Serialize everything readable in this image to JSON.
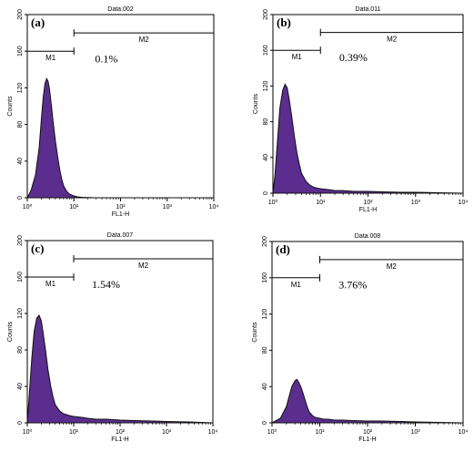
{
  "chart_data": [
    {
      "type": "area",
      "panel_label": "(a)",
      "title": "Data.002",
      "xlabel": "FL1-H",
      "ylabel": "Counts",
      "x_scale": "log",
      "xlim": [
        1,
        10000
      ],
      "ylim": [
        0,
        200
      ],
      "x_ticks": [
        "10⁰",
        "10¹",
        "10²",
        "10³",
        "10⁴"
      ],
      "y_ticks": [
        "0",
        "40",
        "80",
        "120",
        "160",
        "200"
      ],
      "markers": [
        {
          "label": "M1",
          "range": [
            1,
            10
          ],
          "level": 160
        },
        {
          "label": "M2",
          "range": [
            10,
            10000
          ],
          "level": 180
        }
      ],
      "annotation": "0.1%",
      "fill_color": "#5b2d8e",
      "series": [
        {
          "x": [
            1.0,
            1.2,
            1.5,
            1.8,
            2.0,
            2.2,
            2.4,
            2.6,
            2.8,
            3.0,
            3.3,
            3.6,
            4.0,
            4.5,
            5.0,
            5.5,
            6.0,
            7.0,
            8.0,
            10.0,
            12.0,
            15.0,
            20.0,
            30.0,
            50.0,
            100.0,
            1000.0,
            10000.0
          ],
          "y": [
            0,
            8,
            25,
            55,
            85,
            110,
            125,
            130,
            127,
            118,
            100,
            82,
            62,
            44,
            30,
            20,
            13,
            7,
            4,
            2,
            1,
            0.5,
            0.3,
            0,
            0,
            0,
            0,
            0
          ]
        }
      ]
    },
    {
      "type": "area",
      "panel_label": "(b)",
      "title": "Data.011",
      "xlabel": "FL1-H",
      "ylabel": "Counts",
      "x_scale": "log",
      "xlim": [
        1,
        10000
      ],
      "ylim": [
        0,
        200
      ],
      "x_ticks": [
        "10⁰",
        "10¹",
        "10²",
        "10³",
        "10⁴"
      ],
      "y_ticks": [
        "0",
        "40",
        "80",
        "120",
        "160",
        "200"
      ],
      "markers": [
        {
          "label": "M1",
          "range": [
            1,
            10
          ],
          "level": 160
        },
        {
          "label": "M2",
          "range": [
            10,
            10000
          ],
          "level": 180
        }
      ],
      "annotation": "0.39%",
      "fill_color": "#5b2d8e",
      "series": [
        {
          "x": [
            1.0,
            1.1,
            1.25,
            1.4,
            1.6,
            1.8,
            2.0,
            2.2,
            2.5,
            2.8,
            3.2,
            3.6,
            4.0,
            5.0,
            6.0,
            7.0,
            8.0,
            10.0,
            15.0,
            20.0,
            30.0,
            50.0,
            100.0,
            200.0,
            500.0,
            1000.0,
            3000.0,
            10000.0
          ],
          "y": [
            0,
            20,
            60,
            95,
            115,
            122,
            118,
            105,
            85,
            65,
            45,
            32,
            22,
            13,
            9,
            7,
            6,
            5,
            4,
            3,
            3,
            2,
            2,
            1.5,
            1,
            1,
            0.5,
            0
          ]
        }
      ]
    },
    {
      "type": "area",
      "panel_label": "(c)",
      "title": "Data.007",
      "xlabel": "FL1-H",
      "ylabel": "Counts",
      "x_scale": "log",
      "xlim": [
        1,
        10000
      ],
      "ylim": [
        0,
        200
      ],
      "x_ticks": [
        "10⁰",
        "10¹",
        "10²",
        "10³",
        "10⁴"
      ],
      "y_ticks": [
        "0",
        "40",
        "80",
        "120",
        "160",
        "200"
      ],
      "markers": [
        {
          "label": "M1",
          "range": [
            1,
            10
          ],
          "level": 160
        },
        {
          "label": "M2",
          "range": [
            10,
            10000
          ],
          "level": 180
        }
      ],
      "annotation": "1.54%",
      "fill_color": "#5b2d8e",
      "series": [
        {
          "x": [
            1.0,
            1.1,
            1.25,
            1.4,
            1.6,
            1.8,
            2.0,
            2.2,
            2.5,
            2.8,
            3.2,
            3.6,
            4.0,
            5.0,
            6.0,
            7.0,
            8.0,
            10.0,
            15.0,
            20.0,
            30.0,
            50.0,
            100.0,
            200.0,
            500.0,
            1000.0,
            3000.0,
            10000.0
          ],
          "y": [
            0,
            30,
            70,
            100,
            115,
            118,
            112,
            98,
            78,
            58,
            40,
            28,
            20,
            13,
            10,
            9,
            8,
            7,
            6,
            5,
            4,
            4,
            3,
            2.5,
            2,
            1.5,
            1,
            0
          ]
        }
      ]
    },
    {
      "type": "area",
      "panel_label": "(d)",
      "title": "Data.008",
      "xlabel": "FL1-H",
      "ylabel": "Counts",
      "x_scale": "log",
      "xlim": [
        1,
        10000
      ],
      "ylim": [
        0,
        200
      ],
      "x_ticks": [
        "10⁰",
        "10¹",
        "10²",
        "10³",
        "10⁴"
      ],
      "y_ticks": [
        "0",
        "40",
        "80",
        "120",
        "160",
        "200"
      ],
      "markers": [
        {
          "label": "M1",
          "range": [
            1,
            10
          ],
          "level": 160
        },
        {
          "label": "M2",
          "range": [
            10,
            10000
          ],
          "level": 180
        }
      ],
      "annotation": "3.76%",
      "fill_color": "#5b2d8e",
      "series": [
        {
          "x": [
            1.0,
            1.5,
            2.0,
            2.3,
            2.6,
            3.0,
            3.3,
            3.6,
            4.0,
            4.5,
            5.0,
            5.5,
            6.0,
            7.0,
            8.0,
            10.0,
            12.0,
            15.0,
            20.0,
            30.0,
            50.0,
            100.0,
            200.0,
            500.0,
            1000.0,
            3000.0,
            10000.0
          ],
          "y": [
            0,
            5,
            18,
            30,
            40,
            46,
            48,
            45,
            40,
            32,
            24,
            17,
            12,
            8,
            6,
            5,
            4,
            4,
            3,
            3,
            2.5,
            2,
            2,
            1.5,
            1,
            0.5,
            0
          ]
        }
      ]
    }
  ]
}
